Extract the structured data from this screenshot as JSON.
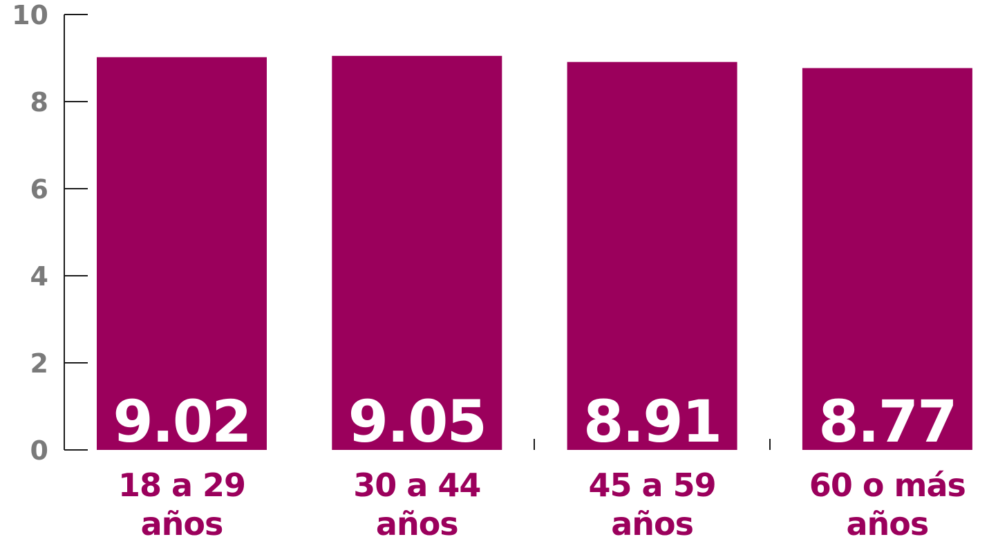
{
  "chart_data": {
    "type": "bar",
    "categories": [
      [
        "18 a 29",
        "años"
      ],
      [
        "30 a 44",
        "años"
      ],
      [
        "45 a 59",
        "años"
      ],
      [
        "60 o más",
        "años"
      ]
    ],
    "values": [
      9.02,
      9.05,
      8.91,
      8.77
    ],
    "value_labels": [
      "9.02",
      "9.05",
      "8.91",
      "8.77"
    ],
    "ylim": [
      0,
      10
    ],
    "yticks": [
      0,
      2,
      4,
      6,
      8,
      10
    ],
    "ytick_labels": [
      "0",
      "2",
      "4",
      "6",
      "8",
      "10"
    ],
    "title": "",
    "xlabel": "",
    "ylabel": "",
    "grid": false,
    "colors": {
      "bar": "#9b005c",
      "category_text": "#9b005c",
      "axis": "#1a1a1a",
      "tick_text": "#7a7a7a",
      "value_text": "#ffffff"
    }
  }
}
